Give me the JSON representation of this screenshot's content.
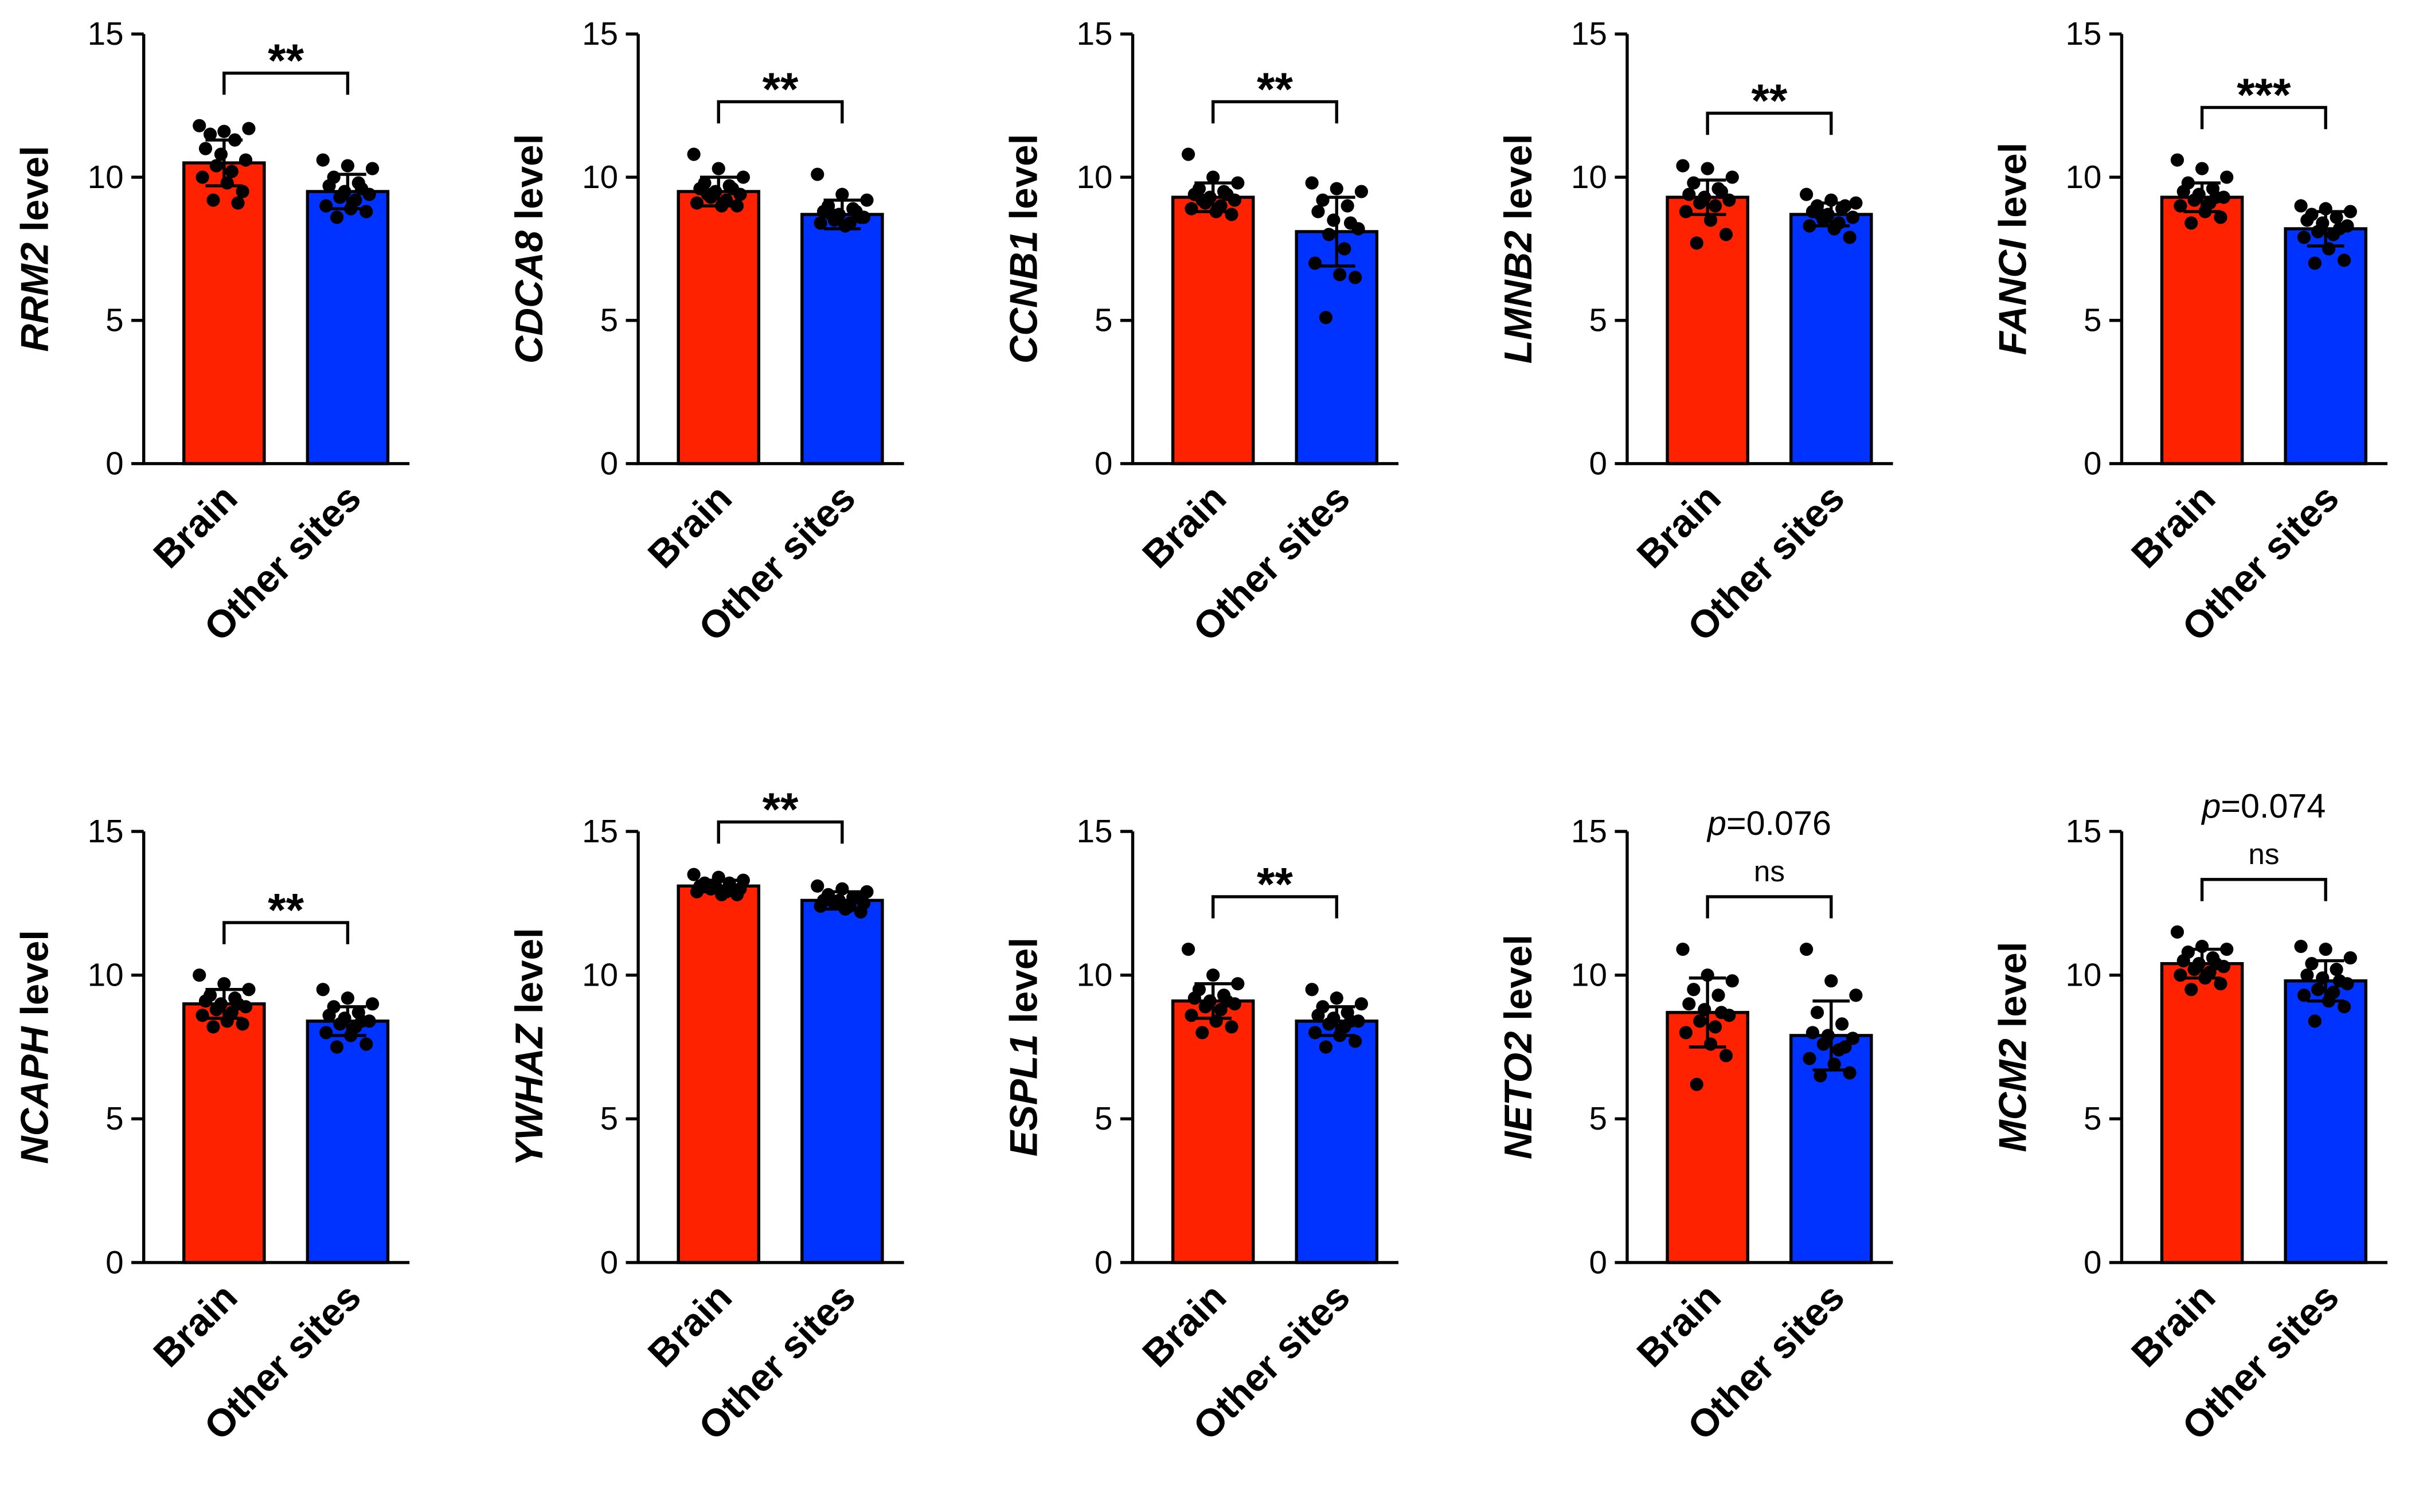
{
  "chart_data": [
    {
      "type": "bar",
      "ylabel": "RRM2 level",
      "categories": [
        "Brain",
        "Other sites"
      ],
      "colors": [
        "#ff2200",
        "#0033ff"
      ],
      "values": [
        10.5,
        9.5
      ],
      "errors": [
        0.8,
        0.6
      ],
      "points": [
        [
          11.8,
          11.6,
          11.7,
          11.5,
          11.3,
          11.0,
          10.8,
          10.6,
          10.4,
          10.2,
          10.0,
          9.8,
          9.5,
          9.2,
          9.1
        ],
        [
          10.6,
          10.4,
          10.3,
          10.0,
          9.8,
          9.7,
          9.5,
          9.4,
          9.3,
          9.2,
          9.0,
          8.9,
          8.8,
          8.6,
          9.6
        ]
      ],
      "ylim": [
        0,
        15
      ],
      "yticks": [
        0,
        5,
        10,
        15
      ],
      "annotation": "**"
    },
    {
      "type": "bar",
      "ylabel": "CDCA8 level",
      "categories": [
        "Brain",
        "Other sites"
      ],
      "colors": [
        "#ff2200",
        "#0033ff"
      ],
      "values": [
        9.5,
        8.7
      ],
      "errors": [
        0.5,
        0.5
      ],
      "points": [
        [
          10.8,
          10.3,
          10.0,
          9.8,
          9.7,
          9.6,
          9.5,
          9.4,
          9.3,
          9.2,
          9.1,
          9.0,
          9.0,
          9.4,
          9.6
        ],
        [
          10.1,
          9.4,
          9.2,
          9.0,
          8.9,
          8.8,
          8.7,
          8.6,
          8.5,
          8.4,
          8.4,
          8.3,
          8.6,
          8.7,
          8.8
        ]
      ],
      "ylim": [
        0,
        15
      ],
      "yticks": [
        0,
        5,
        10,
        15
      ],
      "annotation": "**"
    },
    {
      "type": "bar",
      "ylabel": "CCNB1 level",
      "categories": [
        "Brain",
        "Other sites"
      ],
      "colors": [
        "#ff2200",
        "#0033ff"
      ],
      "values": [
        9.3,
        8.1
      ],
      "errors": [
        0.5,
        1.2
      ],
      "points": [
        [
          10.8,
          10.0,
          9.8,
          9.6,
          9.5,
          9.4,
          9.3,
          9.2,
          9.1,
          9.0,
          8.9,
          8.8,
          8.7,
          9.2,
          9.4
        ],
        [
          9.8,
          9.6,
          9.5,
          9.2,
          9.0,
          8.8,
          8.5,
          8.2,
          8.0,
          7.5,
          7.0,
          6.6,
          6.5,
          5.1,
          8.4
        ]
      ],
      "ylim": [
        0,
        15
      ],
      "yticks": [
        0,
        5,
        10,
        15
      ],
      "annotation": "**"
    },
    {
      "type": "bar",
      "ylabel": "LMNB2 level",
      "categories": [
        "Brain",
        "Other sites"
      ],
      "colors": [
        "#ff2200",
        "#0033ff"
      ],
      "values": [
        9.3,
        8.7
      ],
      "errors": [
        0.6,
        0.4
      ],
      "points": [
        [
          10.4,
          10.3,
          10.0,
          9.8,
          9.6,
          9.4,
          9.3,
          9.2,
          9.1,
          9.0,
          8.8,
          8.5,
          8.0,
          7.7,
          9.5
        ],
        [
          9.4,
          9.2,
          9.1,
          9.0,
          8.9,
          8.8,
          8.7,
          8.6,
          8.5,
          8.4,
          8.3,
          8.2,
          7.9,
          8.7,
          9.0
        ]
      ],
      "ylim": [
        0,
        15
      ],
      "yticks": [
        0,
        5,
        10,
        15
      ],
      "annotation": "**"
    },
    {
      "type": "bar",
      "ylabel": "FANCI level",
      "categories": [
        "Brain",
        "Other sites"
      ],
      "colors": [
        "#ff2200",
        "#0033ff"
      ],
      "values": [
        9.3,
        8.2
      ],
      "errors": [
        0.5,
        0.6
      ],
      "points": [
        [
          10.6,
          10.3,
          10.0,
          9.8,
          9.6,
          9.5,
          9.4,
          9.3,
          9.2,
          9.1,
          9.0,
          8.8,
          8.6,
          8.4,
          9.3
        ],
        [
          9.0,
          8.9,
          8.8,
          8.7,
          8.6,
          8.5,
          8.4,
          8.3,
          8.1,
          8.0,
          7.9,
          7.5,
          7.1,
          7.0,
          8.2
        ]
      ],
      "ylim": [
        0,
        15
      ],
      "yticks": [
        0,
        5,
        10,
        15
      ],
      "annotation": "***"
    },
    {
      "type": "bar",
      "ylabel": "NCAPH level",
      "categories": [
        "Brain",
        "Other sites"
      ],
      "colors": [
        "#ff2200",
        "#0033ff"
      ],
      "values": [
        9.0,
        8.4
      ],
      "errors": [
        0.5,
        0.5
      ],
      "points": [
        [
          10.0,
          9.7,
          9.5,
          9.3,
          9.2,
          9.1,
          9.0,
          8.9,
          8.8,
          8.7,
          8.6,
          8.4,
          8.3,
          8.2,
          9.0
        ],
        [
          9.5,
          9.2,
          9.0,
          8.9,
          8.7,
          8.6,
          8.5,
          8.4,
          8.3,
          8.2,
          8.0,
          7.9,
          7.6,
          7.5,
          8.4
        ]
      ],
      "ylim": [
        0,
        15
      ],
      "yticks": [
        0,
        5,
        10,
        15
      ],
      "annotation": "**"
    },
    {
      "type": "bar",
      "ylabel": "YWHAZ level",
      "categories": [
        "Brain",
        "Other sites"
      ],
      "colors": [
        "#ff2200",
        "#0033ff"
      ],
      "values": [
        13.1,
        12.6
      ],
      "errors": [
        0.2,
        0.3
      ],
      "points": [
        [
          13.5,
          13.4,
          13.3,
          13.2,
          13.2,
          13.1,
          13.1,
          13.0,
          13.0,
          12.9,
          12.9,
          12.8,
          12.8,
          13.1,
          13.0
        ],
        [
          13.1,
          13.0,
          12.9,
          12.8,
          12.7,
          12.6,
          12.6,
          12.5,
          12.5,
          12.4,
          12.4,
          12.3,
          12.2,
          12.6,
          12.7
        ]
      ],
      "ylim": [
        0,
        15
      ],
      "yticks": [
        0,
        5,
        10,
        15
      ],
      "annotation": "**"
    },
    {
      "type": "bar",
      "ylabel": "ESPL1 level",
      "categories": [
        "Brain",
        "Other sites"
      ],
      "colors": [
        "#ff2200",
        "#0033ff"
      ],
      "values": [
        9.1,
        8.4
      ],
      "errors": [
        0.6,
        0.5
      ],
      "points": [
        [
          10.9,
          10.0,
          9.7,
          9.5,
          9.3,
          9.2,
          9.1,
          9.0,
          8.9,
          8.8,
          8.6,
          8.4,
          8.2,
          8.0,
          9.1
        ],
        [
          9.5,
          9.2,
          9.0,
          8.9,
          8.7,
          8.6,
          8.5,
          8.4,
          8.3,
          8.2,
          8.0,
          7.9,
          7.7,
          7.5,
          8.4
        ]
      ],
      "ylim": [
        0,
        15
      ],
      "yticks": [
        0,
        5,
        10,
        15
      ],
      "annotation": "**"
    },
    {
      "type": "bar",
      "ylabel": "NETO2 level",
      "categories": [
        "Brain",
        "Other sites"
      ],
      "colors": [
        "#ff2200",
        "#0033ff"
      ],
      "values": [
        8.7,
        7.9
      ],
      "errors": [
        1.2,
        1.2
      ],
      "points": [
        [
          10.9,
          10.0,
          9.8,
          9.5,
          9.3,
          9.0,
          8.8,
          8.6,
          8.4,
          8.2,
          8.0,
          7.6,
          7.2,
          6.2,
          8.7
        ],
        [
          10.9,
          9.8,
          9.3,
          8.7,
          8.3,
          8.0,
          7.9,
          7.8,
          7.6,
          7.4,
          7.1,
          6.9,
          6.6,
          6.5,
          7.5
        ]
      ],
      "ylim": [
        0,
        15
      ],
      "yticks": [
        0,
        5,
        10,
        15
      ],
      "annotation": "ns",
      "p_label": "p=0.076"
    },
    {
      "type": "bar",
      "ylabel": "MCM2 level",
      "categories": [
        "Brain",
        "Other sites"
      ],
      "colors": [
        "#ff2200",
        "#0033ff"
      ],
      "values": [
        10.4,
        9.8
      ],
      "errors": [
        0.5,
        0.7
      ],
      "points": [
        [
          11.5,
          11.0,
          10.9,
          10.8,
          10.6,
          10.5,
          10.4,
          10.3,
          10.2,
          10.1,
          10.0,
          9.9,
          9.7,
          9.5,
          10.4
        ],
        [
          11.0,
          10.9,
          10.6,
          10.4,
          10.2,
          10.0,
          9.9,
          9.7,
          9.5,
          9.4,
          9.3,
          9.1,
          8.9,
          8.4,
          9.8
        ]
      ],
      "ylim": [
        0,
        15
      ],
      "yticks": [
        0,
        5,
        10,
        15
      ],
      "annotation": "ns",
      "p_label": "p=0.074"
    }
  ]
}
